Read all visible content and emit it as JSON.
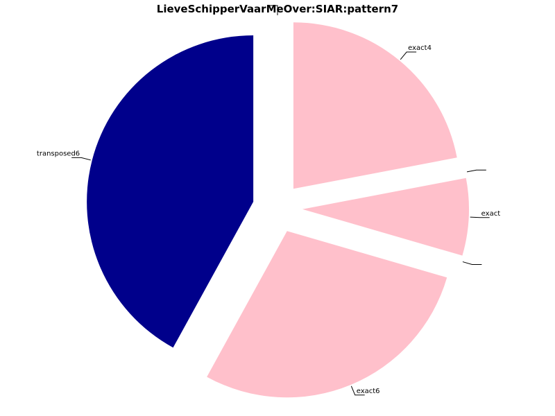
{
  "chart_data": {
    "type": "pie",
    "title": "LieveSchipperVaarMeOver:SIAR:pattern7",
    "slices": [
      {
        "label": "exact4",
        "value": 22.0,
        "color": "#ffc0cb"
      },
      {
        "label": "",
        "value": 0.0,
        "color": "#ffc0cb"
      },
      {
        "label": "exact",
        "value": 7.5,
        "color": "#ffc0cb"
      },
      {
        "label": "",
        "value": 0.0,
        "color": "#ffc0cb"
      },
      {
        "label": "exact6",
        "value": 28.5,
        "color": "#ffc0cb"
      },
      {
        "label": "transposed6",
        "value": 42.0,
        "color": "#00008b"
      },
      {
        "label": "",
        "value": 0.0,
        "color": "#ffc0cb"
      }
    ],
    "start_angle_deg": 90,
    "direction": "clockwise",
    "exploded": true,
    "grid": false,
    "legend": "none"
  }
}
